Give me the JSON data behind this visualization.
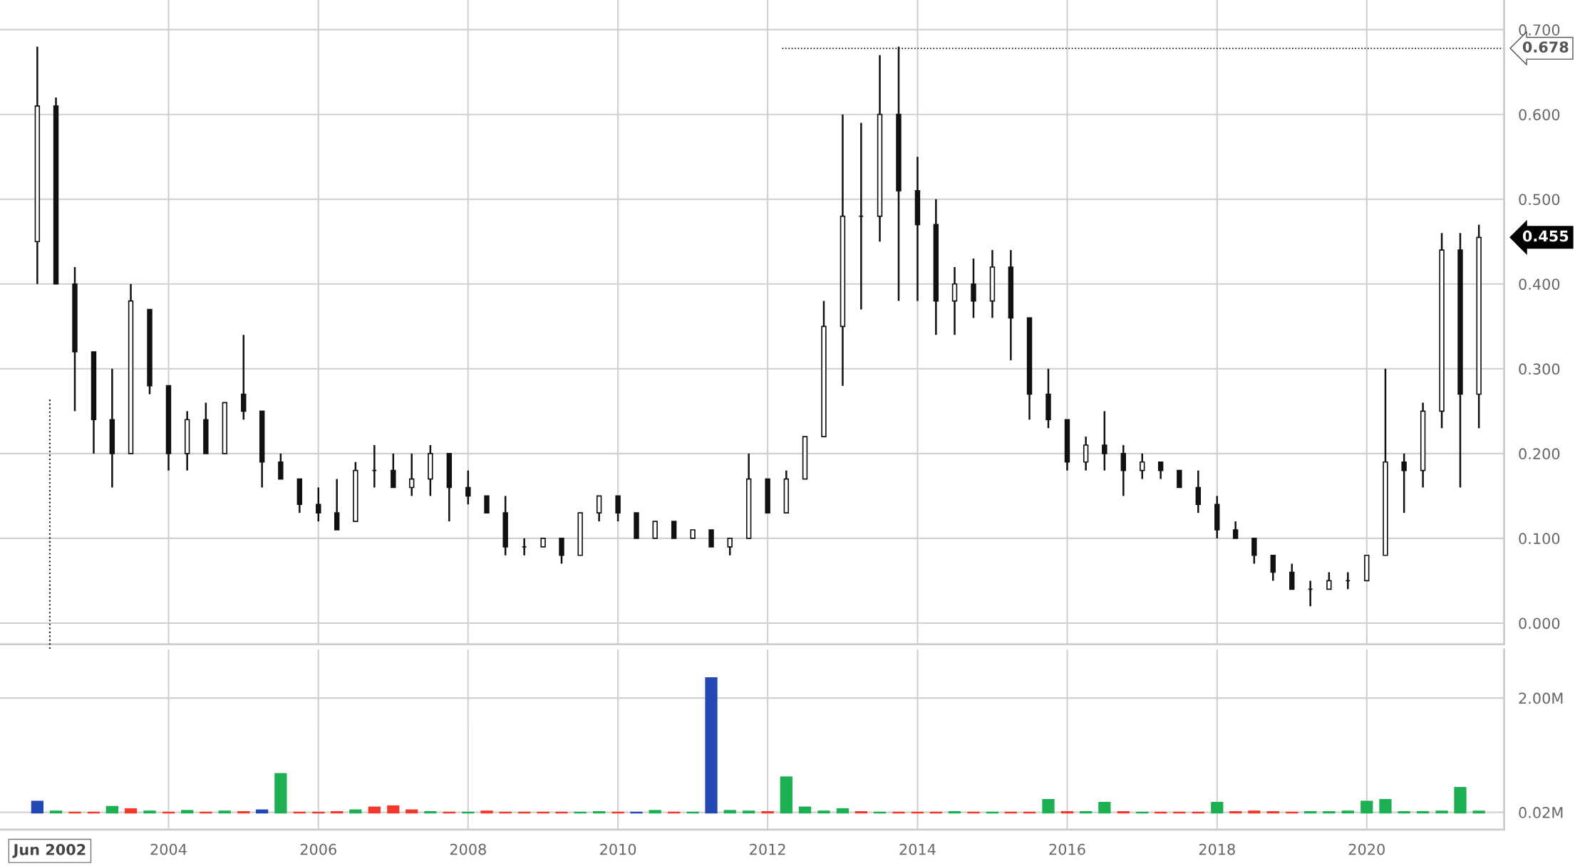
{
  "chart_data": [
    {
      "type": "candlestick",
      "x": [
        "2002-04",
        "2002-07",
        "2002-10",
        "2003-01",
        "2003-04",
        "2003-07",
        "2003-10",
        "2004-01",
        "2004-04",
        "2004-07",
        "2004-10",
        "2005-01",
        "2005-04",
        "2005-07",
        "2005-10",
        "2006-01",
        "2006-04",
        "2006-07",
        "2006-10",
        "2007-01",
        "2007-04",
        "2007-07",
        "2007-10",
        "2008-01",
        "2008-04",
        "2008-07",
        "2008-10",
        "2009-01",
        "2009-04",
        "2009-07",
        "2009-10",
        "2010-01",
        "2010-04",
        "2010-07",
        "2010-10",
        "2011-01",
        "2011-04",
        "2011-07",
        "2011-10",
        "2012-01",
        "2012-04",
        "2012-07",
        "2012-10",
        "2013-01",
        "2013-04",
        "2013-07",
        "2013-10",
        "2014-01",
        "2014-04",
        "2014-07",
        "2014-10",
        "2015-01",
        "2015-04",
        "2015-07",
        "2015-10",
        "2016-01",
        "2016-04",
        "2016-07",
        "2016-10",
        "2017-01",
        "2017-04",
        "2017-07",
        "2017-10",
        "2018-01",
        "2018-04",
        "2018-07",
        "2018-10",
        "2019-01",
        "2019-04",
        "2019-07",
        "2019-10",
        "2020-01",
        "2020-04",
        "2020-07",
        "2020-10",
        "2021-01",
        "2021-04",
        "2021-07"
      ],
      "ohlc": [
        [
          0.45,
          0.68,
          0.4,
          0.61
        ],
        [
          0.61,
          0.62,
          0.4,
          0.4
        ],
        [
          0.4,
          0.42,
          0.25,
          0.32
        ],
        [
          0.32,
          0.32,
          0.2,
          0.24
        ],
        [
          0.24,
          0.3,
          0.16,
          0.2
        ],
        [
          0.2,
          0.4,
          0.2,
          0.38
        ],
        [
          0.37,
          0.37,
          0.27,
          0.28
        ],
        [
          0.28,
          0.28,
          0.18,
          0.2
        ],
        [
          0.2,
          0.25,
          0.18,
          0.24
        ],
        [
          0.24,
          0.26,
          0.2,
          0.2
        ],
        [
          0.2,
          0.26,
          0.2,
          0.26
        ],
        [
          0.27,
          0.34,
          0.24,
          0.25
        ],
        [
          0.25,
          0.25,
          0.16,
          0.19
        ],
        [
          0.19,
          0.2,
          0.17,
          0.17
        ],
        [
          0.17,
          0.17,
          0.13,
          0.14
        ],
        [
          0.14,
          0.16,
          0.12,
          0.13
        ],
        [
          0.13,
          0.17,
          0.11,
          0.11
        ],
        [
          0.12,
          0.19,
          0.12,
          0.18
        ],
        [
          0.18,
          0.21,
          0.16,
          0.18
        ],
        [
          0.18,
          0.2,
          0.16,
          0.16
        ],
        [
          0.16,
          0.2,
          0.15,
          0.17
        ],
        [
          0.17,
          0.21,
          0.15,
          0.2
        ],
        [
          0.2,
          0.2,
          0.12,
          0.16
        ],
        [
          0.16,
          0.18,
          0.14,
          0.15
        ],
        [
          0.15,
          0.15,
          0.13,
          0.13
        ],
        [
          0.13,
          0.15,
          0.08,
          0.09
        ],
        [
          0.09,
          0.1,
          0.08,
          0.09
        ],
        [
          0.09,
          0.1,
          0.09,
          0.1
        ],
        [
          0.1,
          0.1,
          0.07,
          0.08
        ],
        [
          0.08,
          0.13,
          0.08,
          0.13
        ],
        [
          0.13,
          0.15,
          0.12,
          0.15
        ],
        [
          0.15,
          0.15,
          0.12,
          0.13
        ],
        [
          0.13,
          0.13,
          0.1,
          0.1
        ],
        [
          0.1,
          0.12,
          0.1,
          0.12
        ],
        [
          0.12,
          0.12,
          0.1,
          0.1
        ],
        [
          0.1,
          0.11,
          0.1,
          0.11
        ],
        [
          0.11,
          0.11,
          0.09,
          0.09
        ],
        [
          0.09,
          0.1,
          0.08,
          0.1
        ],
        [
          0.1,
          0.2,
          0.1,
          0.17
        ],
        [
          0.17,
          0.17,
          0.13,
          0.13
        ],
        [
          0.13,
          0.18,
          0.13,
          0.17
        ],
        [
          0.17,
          0.22,
          0.17,
          0.22
        ],
        [
          0.22,
          0.38,
          0.22,
          0.35
        ],
        [
          0.35,
          0.6,
          0.28,
          0.48
        ],
        [
          0.48,
          0.59,
          0.37,
          0.48
        ],
        [
          0.48,
          0.67,
          0.45,
          0.6
        ],
        [
          0.6,
          0.68,
          0.38,
          0.51
        ],
        [
          0.51,
          0.55,
          0.38,
          0.47
        ],
        [
          0.47,
          0.5,
          0.34,
          0.38
        ],
        [
          0.38,
          0.42,
          0.34,
          0.4
        ],
        [
          0.4,
          0.43,
          0.36,
          0.38
        ],
        [
          0.38,
          0.44,
          0.36,
          0.42
        ],
        [
          0.42,
          0.44,
          0.31,
          0.36
        ],
        [
          0.36,
          0.36,
          0.24,
          0.27
        ],
        [
          0.27,
          0.3,
          0.23,
          0.24
        ],
        [
          0.24,
          0.24,
          0.18,
          0.19
        ],
        [
          0.19,
          0.22,
          0.18,
          0.21
        ],
        [
          0.21,
          0.25,
          0.18,
          0.2
        ],
        [
          0.2,
          0.21,
          0.15,
          0.18
        ],
        [
          0.18,
          0.2,
          0.17,
          0.19
        ],
        [
          0.19,
          0.19,
          0.17,
          0.18
        ],
        [
          0.18,
          0.18,
          0.16,
          0.16
        ],
        [
          0.16,
          0.18,
          0.13,
          0.14
        ],
        [
          0.14,
          0.15,
          0.1,
          0.11
        ],
        [
          0.11,
          0.12,
          0.1,
          0.1
        ],
        [
          0.1,
          0.1,
          0.07,
          0.08
        ],
        [
          0.08,
          0.08,
          0.05,
          0.06
        ],
        [
          0.06,
          0.07,
          0.04,
          0.04
        ],
        [
          0.04,
          0.05,
          0.02,
          0.04
        ],
        [
          0.04,
          0.06,
          0.04,
          0.05
        ],
        [
          0.05,
          0.06,
          0.04,
          0.05
        ],
        [
          0.05,
          0.08,
          0.05,
          0.08
        ],
        [
          0.08,
          0.3,
          0.08,
          0.19
        ],
        [
          0.19,
          0.2,
          0.13,
          0.18
        ],
        [
          0.18,
          0.26,
          0.16,
          0.25
        ],
        [
          0.25,
          0.46,
          0.23,
          0.44
        ],
        [
          0.44,
          0.46,
          0.16,
          0.27
        ],
        [
          0.27,
          0.47,
          0.23,
          0.455
        ]
      ],
      "color": "#111111",
      "xlim": [
        "2001-10",
        "2021-11"
      ],
      "ylim": [
        -0.025,
        0.735
      ],
      "yticks": [
        {
          "value": 0,
          "label": "0.000"
        },
        {
          "value": 0.1,
          "label": "0.100"
        },
        {
          "value": 0.2,
          "label": "0.200"
        },
        {
          "value": 0.3,
          "label": "0.300"
        },
        {
          "value": 0.4,
          "label": "0.400"
        },
        {
          "value": 0.5,
          "label": "0.500"
        },
        {
          "value": 0.6,
          "label": "0.600"
        },
        {
          "value": 0.7,
          "label": "0.700"
        }
      ],
      "xticks": [
        "2004",
        "2006",
        "2008",
        "2010",
        "2012",
        "2014",
        "2016",
        "2018",
        "2020"
      ],
      "tick_labels": "y",
      "grid": true,
      "ref_lines": [
        {
          "axis": "y",
          "value": 0.678,
          "label": "0.678",
          "line_style": "dotted"
        },
        {
          "axis": "x",
          "value": "2002-06",
          "label": "Jun 2002",
          "line_style": "dotted"
        }
      ],
      "annotations": [
        "0.455"
      ]
    },
    {
      "type": "bar",
      "x": [
        "2002-04",
        "2002-07",
        "2002-10",
        "2003-01",
        "2003-04",
        "2003-07",
        "2003-10",
        "2004-01",
        "2004-04",
        "2004-07",
        "2004-10",
        "2005-01",
        "2005-04",
        "2005-07",
        "2005-10",
        "2006-01",
        "2006-04",
        "2006-07",
        "2006-10",
        "2007-01",
        "2007-04",
        "2007-07",
        "2007-10",
        "2008-01",
        "2008-04",
        "2008-07",
        "2008-10",
        "2009-01",
        "2009-04",
        "2009-07",
        "2009-10",
        "2010-01",
        "2010-04",
        "2010-07",
        "2010-10",
        "2011-01",
        "2011-04",
        "2011-07",
        "2011-10",
        "2012-01",
        "2012-04",
        "2012-07",
        "2012-10",
        "2013-01",
        "2013-04",
        "2013-07",
        "2013-10",
        "2014-01",
        "2014-04",
        "2014-07",
        "2014-10",
        "2015-01",
        "2015-04",
        "2015-07",
        "2015-10",
        "2016-01",
        "2016-04",
        "2016-07",
        "2016-10",
        "2017-01",
        "2017-04",
        "2017-07",
        "2017-10",
        "2018-01",
        "2018-04",
        "2018-07",
        "2018-10",
        "2019-01",
        "2019-04",
        "2019-07",
        "2019-10",
        "2020-01",
        "2020-04",
        "2020-07",
        "2020-10",
        "2021-01",
        "2021-04",
        "2021-07"
      ],
      "values": [
        0.22,
        0.05,
        0.03,
        0.03,
        0.13,
        0.09,
        0.05,
        0.03,
        0.06,
        0.03,
        0.05,
        0.04,
        0.07,
        0.7,
        0.03,
        0.03,
        0.04,
        0.07,
        0.12,
        0.14,
        0.07,
        0.04,
        0.03,
        0.03,
        0.05,
        0.03,
        0.03,
        0.03,
        0.03,
        0.03,
        0.04,
        0.03,
        0.03,
        0.06,
        0.03,
        0.03,
        2.36,
        0.06,
        0.05,
        0.04,
        0.64,
        0.12,
        0.05,
        0.09,
        0.04,
        0.03,
        0.03,
        0.03,
        0.03,
        0.04,
        0.03,
        0.03,
        0.03,
        0.03,
        0.25,
        0.04,
        0.04,
        0.2,
        0.04,
        0.03,
        0.03,
        0.03,
        0.03,
        0.2,
        0.04,
        0.05,
        0.04,
        0.03,
        0.04,
        0.04,
        0.05,
        0.22,
        0.25,
        0.04,
        0.04,
        0.05,
        0.46,
        0.05
      ],
      "colors": [
        "#2347b5",
        "#1db052",
        "#f2392c",
        "#f2392c",
        "#1db052",
        "#f2392c",
        "#1db052",
        "#f2392c",
        "#1db052",
        "#f2392c",
        "#1db052",
        "#f2392c",
        "#2347b5",
        "#1db052",
        "#f2392c",
        "#f2392c",
        "#f2392c",
        "#1db052",
        "#f2392c",
        "#f2392c",
        "#f2392c",
        "#1db052",
        "#f2392c",
        "#1db052",
        "#f2392c",
        "#f2392c",
        "#f2392c",
        "#f2392c",
        "#f2392c",
        "#1db052",
        "#1db052",
        "#f2392c",
        "#2347b5",
        "#1db052",
        "#f2392c",
        "#1db052",
        "#2347b5",
        "#1db052",
        "#1db052",
        "#f2392c",
        "#1db052",
        "#1db052",
        "#1db052",
        "#1db052",
        "#f2392c",
        "#1db052",
        "#f2392c",
        "#f2392c",
        "#f2392c",
        "#1db052",
        "#f2392c",
        "#1db052",
        "#f2392c",
        "#f2392c",
        "#1db052",
        "#f2392c",
        "#1db052",
        "#1db052",
        "#f2392c",
        "#1db052",
        "#f2392c",
        "#f2392c",
        "#f2392c",
        "#1db052",
        "#f2392c",
        "#f2392c",
        "#f2392c",
        "#f2392c",
        "#1db052",
        "#1db052",
        "#1db052",
        "#1db052",
        "#1db052",
        "#1db052",
        "#1db052",
        "#1db052",
        "#1db052",
        "#1db052"
      ],
      "xlim": [
        "2001-10",
        "2021-11"
      ],
      "ylim": [
        -0.28,
        2.84
      ],
      "yticks": [
        {
          "value": 0.02,
          "label": "0.02M"
        },
        {
          "value": 2,
          "label": "2.00M"
        }
      ],
      "xticks": [
        "2004",
        "2006",
        "2008",
        "2010",
        "2012",
        "2014",
        "2016",
        "2018",
        "2020"
      ],
      "grid": true
    }
  ]
}
